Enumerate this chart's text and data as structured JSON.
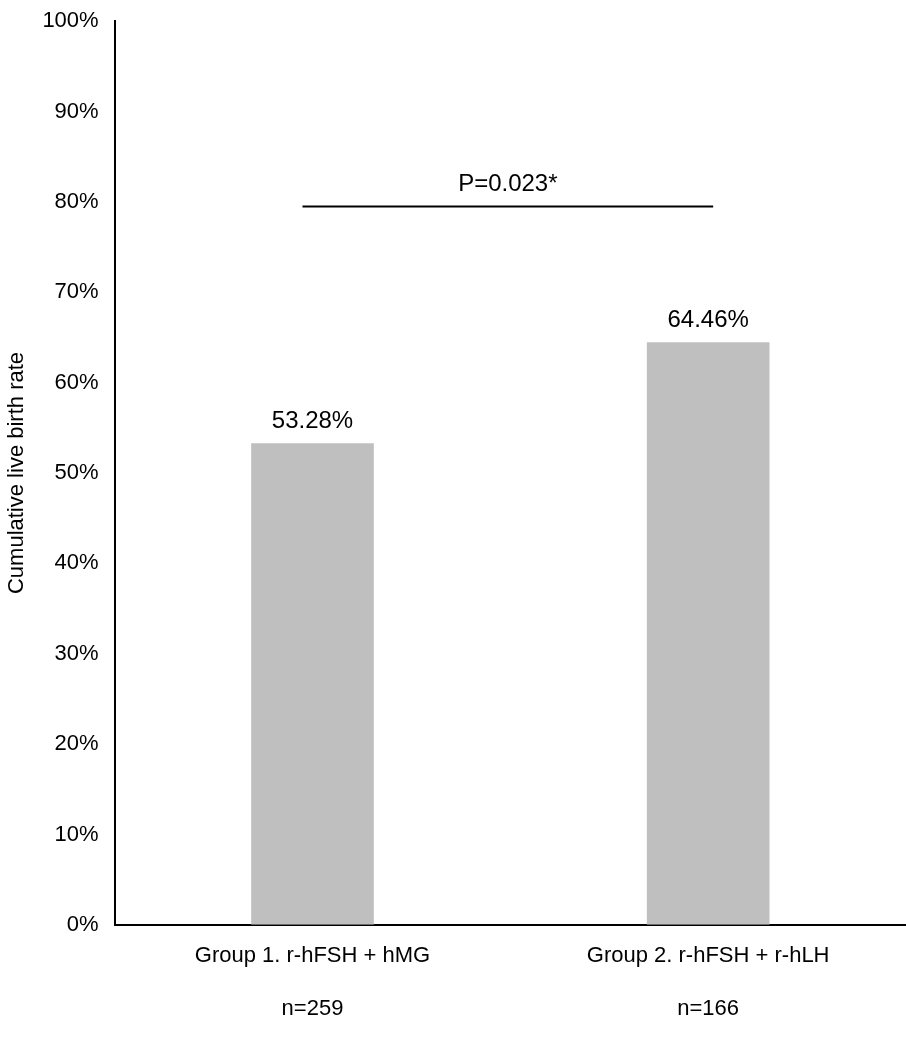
{
  "chart_data": {
    "type": "bar",
    "ylabel": "Cumulative live birth rate",
    "categories": [
      "Group 1. r-hFSH + hMG\n\nn=259",
      "Group 2. r-hFSH + r-hLH\n\nn=166"
    ],
    "values": [
      53.28,
      64.46
    ],
    "color": "#bfbfbf",
    "value_labels": [
      "53.28%",
      "64.46%"
    ],
    "ylim": [
      0,
      100
    ],
    "yticks": [
      {
        "value": 0,
        "label": "0%"
      },
      {
        "value": 10,
        "label": "10%"
      },
      {
        "value": 20,
        "label": "20%"
      },
      {
        "value": 30,
        "label": "30%"
      },
      {
        "value": 40,
        "label": "40%"
      },
      {
        "value": 50,
        "label": "50%"
      },
      {
        "value": 60,
        "label": "60%"
      },
      {
        "value": 70,
        "label": "70%"
      },
      {
        "value": 80,
        "label": "80%"
      },
      {
        "value": 90,
        "label": "90%"
      },
      {
        "value": 100,
        "label": "100%"
      }
    ],
    "annotations": [
      "P=0.023*"
    ],
    "grid": false,
    "legend": false
  }
}
